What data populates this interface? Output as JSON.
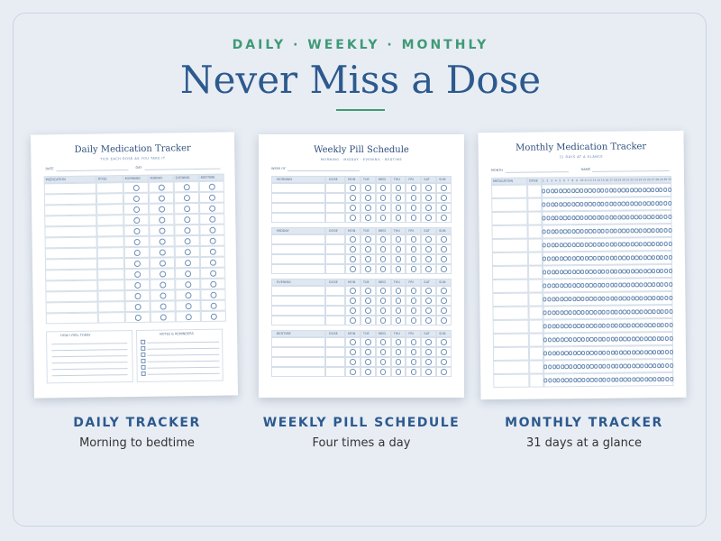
{
  "header": {
    "kicker": "DAILY · WEEKLY · MONTHLY",
    "title": "Never Miss a Dose"
  },
  "daily": {
    "title": "Daily Medication Tracker",
    "subtitle": "TICK EACH DOSE AS YOU TAKE IT",
    "date_label": "DATE",
    "day_label": "DAY",
    "columns": [
      "MEDICATION",
      "DOSE",
      "MORNING",
      "MIDDAY",
      "EVENING",
      "BEDTIME"
    ],
    "feel_label": "HOW I FEEL TODAY",
    "notes_label": "NOTES & REMINDERS"
  },
  "weekly": {
    "title": "Weekly Pill Schedule",
    "subtitle": "MORNING · MIDDAY · EVENING · BEDTIME",
    "week_label": "WEEK OF",
    "dose_label": "DOSE",
    "days": [
      "MON",
      "TUE",
      "WED",
      "THU",
      "FRI",
      "SAT",
      "SUN"
    ],
    "sections": [
      "MORNING",
      "MIDDAY",
      "EVENING",
      "BEDTIME"
    ]
  },
  "monthly": {
    "title": "Monthly Medication Tracker",
    "subtitle": "31 DAYS AT A GLANCE",
    "month_label": "MONTH",
    "name_label": "NAME",
    "columns": [
      "MEDICATION",
      "DOSE"
    ],
    "days": [
      1,
      2,
      3,
      4,
      5,
      6,
      7,
      8,
      9,
      10,
      11,
      12,
      13,
      14,
      15,
      16,
      17,
      18,
      19,
      20,
      21,
      22,
      23,
      24,
      25,
      26,
      27,
      28,
      29,
      30,
      31
    ]
  },
  "captions": [
    {
      "title": "DAILY TRACKER",
      "text": "Morning to bedtime"
    },
    {
      "title": "WEEKLY PILL SCHEDULE",
      "text": "Four times a day"
    },
    {
      "title": "MONTHLY TRACKER",
      "text": "31 days at a glance"
    }
  ]
}
